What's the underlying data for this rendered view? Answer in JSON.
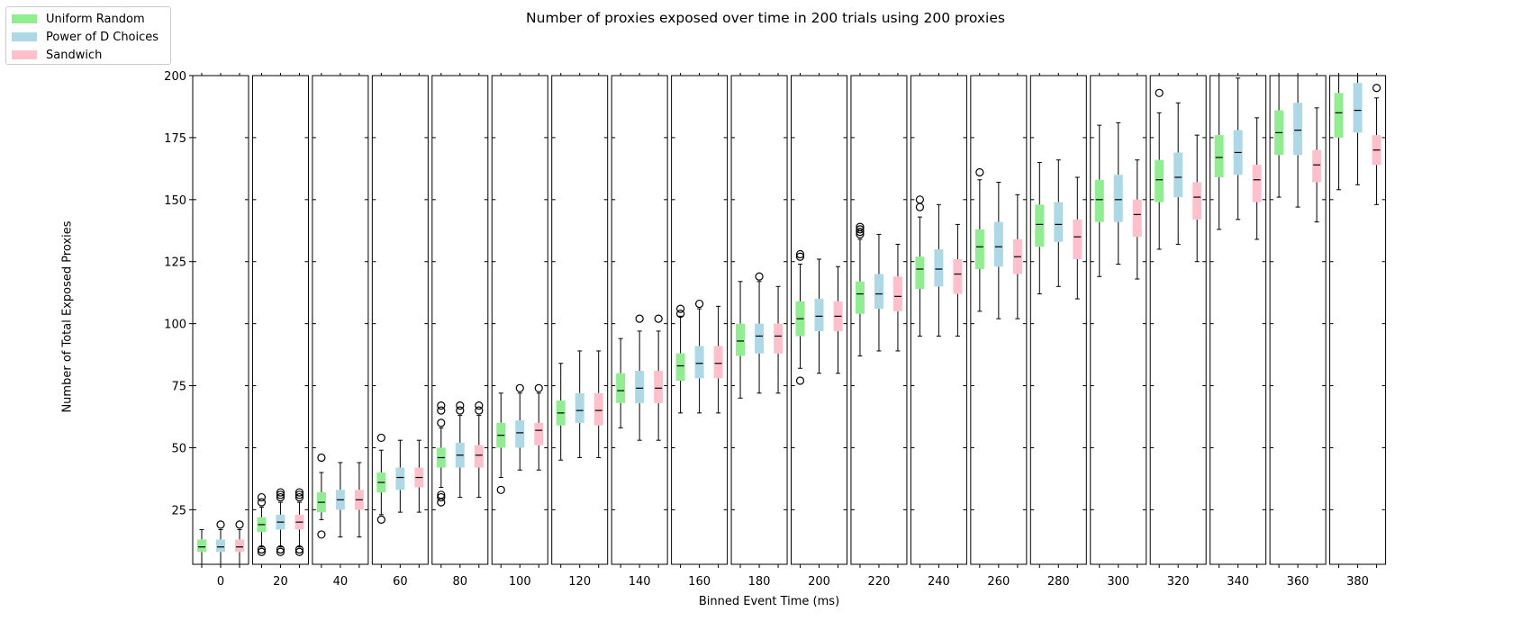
{
  "chart_data": {
    "type": "box",
    "title": "Number of proxies exposed over time in 200 trials using 200 proxies",
    "xlabel": "Binned Event Time (ms)",
    "ylabel": "Number of Total Exposed Proxies",
    "ylim": [
      3,
      200
    ],
    "yticks": [
      25,
      50,
      75,
      100,
      125,
      150,
      175,
      200
    ],
    "legend_position": "top-left",
    "bins": [
      0,
      20,
      40,
      60,
      80,
      100,
      120,
      140,
      160,
      180,
      200,
      220,
      240,
      260,
      280,
      300,
      320,
      340,
      360,
      380
    ],
    "series": [
      {
        "name": "Uniform Random",
        "color": "#90ee90",
        "boxes": [
          {
            "min": 3,
            "q1": 8,
            "median": 10,
            "q3": 13,
            "max": 17,
            "outliers": []
          },
          {
            "min": 10,
            "q1": 16,
            "median": 19,
            "q3": 22,
            "max": 26,
            "outliers": [
              8,
              9,
              28,
              30
            ]
          },
          {
            "min": 21,
            "q1": 24,
            "median": 28,
            "q3": 32,
            "max": 40,
            "outliers": [
              15,
              46
            ]
          },
          {
            "min": 23,
            "q1": 32,
            "median": 36,
            "q3": 40,
            "max": 49,
            "outliers": [
              21,
              54
            ]
          },
          {
            "min": 34,
            "q1": 42,
            "median": 46,
            "q3": 50,
            "max": 58,
            "outliers": [
              28,
              30,
              31,
              60,
              65,
              67
            ]
          },
          {
            "min": 38,
            "q1": 50,
            "median": 55,
            "q3": 60,
            "max": 72,
            "outliers": [
              33
            ]
          },
          {
            "min": 45,
            "q1": 59,
            "median": 64,
            "q3": 69,
            "max": 84,
            "outliers": []
          },
          {
            "min": 58,
            "q1": 68,
            "median": 73,
            "q3": 80,
            "max": 94,
            "outliers": []
          },
          {
            "min": 64,
            "q1": 77,
            "median": 83,
            "q3": 88,
            "max": 103,
            "outliers": [
              104,
              106
            ]
          },
          {
            "min": 70,
            "q1": 87,
            "median": 93,
            "q3": 100,
            "max": 117,
            "outliers": []
          },
          {
            "min": 82,
            "q1": 95,
            "median": 102,
            "q3": 109,
            "max": 124,
            "outliers": [
              77,
              127,
              128
            ]
          },
          {
            "min": 87,
            "q1": 104,
            "median": 112,
            "q3": 117,
            "max": 134,
            "outliers": [
              136,
              137,
              138,
              139
            ]
          },
          {
            "min": 95,
            "q1": 114,
            "median": 122,
            "q3": 127,
            "max": 143,
            "outliers": [
              147,
              150
            ]
          },
          {
            "min": 105,
            "q1": 122,
            "median": 131,
            "q3": 138,
            "max": 158,
            "outliers": [
              161
            ]
          },
          {
            "min": 112,
            "q1": 131,
            "median": 140,
            "q3": 148,
            "max": 165,
            "outliers": []
          },
          {
            "min": 119,
            "q1": 141,
            "median": 150,
            "q3": 158,
            "max": 180,
            "outliers": []
          },
          {
            "min": 130,
            "q1": 149,
            "median": 158,
            "q3": 166,
            "max": 185,
            "outliers": [
              193
            ]
          },
          {
            "min": 138,
            "q1": 159,
            "median": 167,
            "q3": 176,
            "max": 200,
            "outliers": []
          },
          {
            "min": 151,
            "q1": 168,
            "median": 177,
            "q3": 186,
            "max": 200,
            "outliers": []
          },
          {
            "min": 154,
            "q1": 175,
            "median": 185,
            "q3": 193,
            "max": 200,
            "outliers": []
          }
        ]
      },
      {
        "name": "Power of D Choices",
        "color": "#add8e6",
        "boxes": [
          {
            "min": 3,
            "q1": 8,
            "median": 10,
            "q3": 13,
            "max": 17,
            "outliers": [
              19
            ]
          },
          {
            "min": 10,
            "q1": 17,
            "median": 20,
            "q3": 23,
            "max": 28,
            "outliers": [
              8,
              9,
              30,
              31,
              32
            ]
          },
          {
            "min": 14,
            "q1": 25,
            "median": 29,
            "q3": 33,
            "max": 44,
            "outliers": []
          },
          {
            "min": 24,
            "q1": 33,
            "median": 38,
            "q3": 42,
            "max": 53,
            "outliers": []
          },
          {
            "min": 30,
            "q1": 42,
            "median": 47,
            "q3": 52,
            "max": 63,
            "outliers": [
              65,
              67
            ]
          },
          {
            "min": 41,
            "q1": 50,
            "median": 56,
            "q3": 61,
            "max": 72,
            "outliers": [
              74
            ]
          },
          {
            "min": 46,
            "q1": 60,
            "median": 65,
            "q3": 72,
            "max": 89,
            "outliers": []
          },
          {
            "min": 53,
            "q1": 68,
            "median": 74,
            "q3": 81,
            "max": 97,
            "outliers": [
              102
            ]
          },
          {
            "min": 64,
            "q1": 78,
            "median": 84,
            "q3": 91,
            "max": 106,
            "outliers": [
              108
            ]
          },
          {
            "min": 72,
            "q1": 88,
            "median": 95,
            "q3": 100,
            "max": 117,
            "outliers": [
              119
            ]
          },
          {
            "min": 80,
            "q1": 97,
            "median": 103,
            "q3": 110,
            "max": 126,
            "outliers": []
          },
          {
            "min": 89,
            "q1": 106,
            "median": 112,
            "q3": 120,
            "max": 136,
            "outliers": []
          },
          {
            "min": 95,
            "q1": 115,
            "median": 122,
            "q3": 130,
            "max": 148,
            "outliers": []
          },
          {
            "min": 102,
            "q1": 123,
            "median": 131,
            "q3": 141,
            "max": 157,
            "outliers": []
          },
          {
            "min": 115,
            "q1": 133,
            "median": 140,
            "q3": 149,
            "max": 166,
            "outliers": []
          },
          {
            "min": 124,
            "q1": 141,
            "median": 150,
            "q3": 160,
            "max": 181,
            "outliers": []
          },
          {
            "min": 132,
            "q1": 151,
            "median": 159,
            "q3": 169,
            "max": 189,
            "outliers": []
          },
          {
            "min": 142,
            "q1": 160,
            "median": 169,
            "q3": 178,
            "max": 199,
            "outliers": []
          },
          {
            "min": 147,
            "q1": 168,
            "median": 178,
            "q3": 189,
            "max": 200,
            "outliers": []
          },
          {
            "min": 156,
            "q1": 177,
            "median": 186,
            "q3": 197,
            "max": 200,
            "outliers": []
          }
        ]
      },
      {
        "name": "Sandwich",
        "color": "#ffc0cb",
        "boxes": [
          {
            "min": 3,
            "q1": 8,
            "median": 10,
            "q3": 13,
            "max": 17,
            "outliers": [
              19
            ]
          },
          {
            "min": 10,
            "q1": 17,
            "median": 20,
            "q3": 23,
            "max": 28,
            "outliers": [
              8,
              9,
              30,
              31,
              32
            ]
          },
          {
            "min": 14,
            "q1": 25,
            "median": 29,
            "q3": 33,
            "max": 44,
            "outliers": []
          },
          {
            "min": 24,
            "q1": 34,
            "median": 38,
            "q3": 42,
            "max": 53,
            "outliers": []
          },
          {
            "min": 30,
            "q1": 42,
            "median": 47,
            "q3": 51,
            "max": 63,
            "outliers": [
              65,
              67
            ]
          },
          {
            "min": 41,
            "q1": 51,
            "median": 57,
            "q3": 60,
            "max": 72,
            "outliers": [
              74
            ]
          },
          {
            "min": 46,
            "q1": 59,
            "median": 65,
            "q3": 72,
            "max": 89,
            "outliers": []
          },
          {
            "min": 53,
            "q1": 68,
            "median": 74,
            "q3": 81,
            "max": 97,
            "outliers": [
              102
            ]
          },
          {
            "min": 64,
            "q1": 78,
            "median": 84,
            "q3": 91,
            "max": 107,
            "outliers": []
          },
          {
            "min": 72,
            "q1": 88,
            "median": 95,
            "q3": 100,
            "max": 115,
            "outliers": []
          },
          {
            "min": 80,
            "q1": 97,
            "median": 103,
            "q3": 109,
            "max": 123,
            "outliers": []
          },
          {
            "min": 89,
            "q1": 105,
            "median": 111,
            "q3": 119,
            "max": 132,
            "outliers": []
          },
          {
            "min": 95,
            "q1": 112,
            "median": 120,
            "q3": 126,
            "max": 140,
            "outliers": []
          },
          {
            "min": 102,
            "q1": 120,
            "median": 127,
            "q3": 134,
            "max": 152,
            "outliers": []
          },
          {
            "min": 110,
            "q1": 126,
            "median": 135,
            "q3": 142,
            "max": 159,
            "outliers": []
          },
          {
            "min": 118,
            "q1": 135,
            "median": 144,
            "q3": 150,
            "max": 166,
            "outliers": []
          },
          {
            "min": 125,
            "q1": 142,
            "median": 151,
            "q3": 157,
            "max": 176,
            "outliers": []
          },
          {
            "min": 134,
            "q1": 149,
            "median": 158,
            "q3": 164,
            "max": 183,
            "outliers": []
          },
          {
            "min": 141,
            "q1": 157,
            "median": 164,
            "q3": 170,
            "max": 187,
            "outliers": []
          },
          {
            "min": 148,
            "q1": 164,
            "median": 170,
            "q3": 176,
            "max": 191,
            "outliers": [
              195
            ]
          }
        ]
      }
    ]
  }
}
